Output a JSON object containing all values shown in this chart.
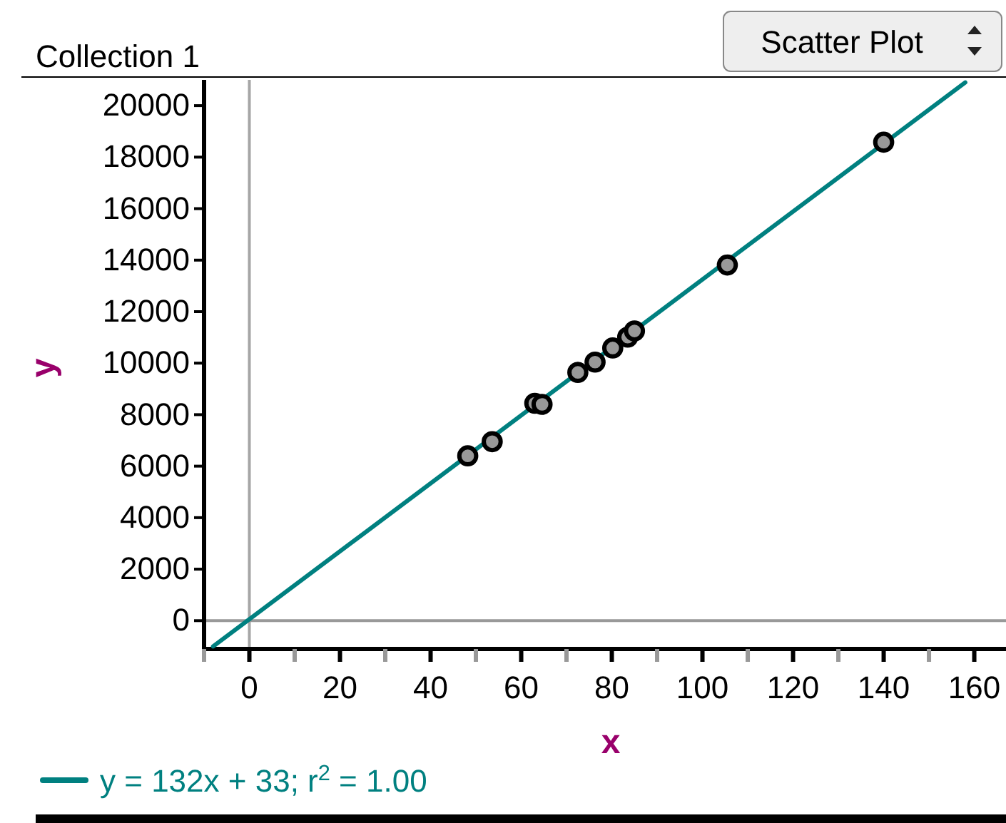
{
  "chart_data": {
    "type": "scatter",
    "title": "Collection 1",
    "xlabel": "x",
    "ylabel": "y",
    "xlim": [
      -10,
      167
    ],
    "ylim": [
      -1100,
      21000
    ],
    "xticks": [
      {
        "value": -10,
        "label": null
      },
      0,
      {
        "value": 10,
        "label": null
      },
      20,
      {
        "value": 30,
        "label": null
      },
      40,
      {
        "value": 50,
        "label": null
      },
      60,
      {
        "value": 70,
        "label": null
      },
      80,
      {
        "value": 90,
        "label": null
      },
      100,
      {
        "value": 110,
        "label": null
      },
      120,
      {
        "value": 130,
        "label": null
      },
      140,
      {
        "value": 150,
        "label": null
      },
      160
    ],
    "yticks": [
      0,
      2000,
      4000,
      6000,
      8000,
      10000,
      12000,
      14000,
      16000,
      18000,
      20000
    ],
    "grid": false,
    "marker": "circle",
    "legend": "bottom left",
    "ref_lines": [
      {
        "axis": "x",
        "value": 0,
        "color": "#a6a6a6"
      },
      {
        "axis": "y",
        "value": 0,
        "color": "#999999"
      }
    ],
    "annotations": [
      "Scatter Plot"
    ],
    "series": [
      {
        "color": "#999999",
        "x": [
          48.2,
          53.6,
          63.0,
          64.6,
          72.5,
          76.3,
          80.2,
          83.5,
          85.0,
          105.5,
          140
        ],
        "values": [
          6400,
          6950,
          8440,
          8400,
          9640,
          10040,
          10590,
          11010,
          11250,
          13810,
          18580
        ]
      },
      {
        "type": "line",
        "name": "y = 132x + 33; r$^{2}$ = 1.00",
        "color": "#008080",
        "marker": "none",
        "line_style": "solid",
        "x": [
          -8,
          158
        ],
        "values": [
          -1000,
          20900
        ]
      }
    ]
  }
}
